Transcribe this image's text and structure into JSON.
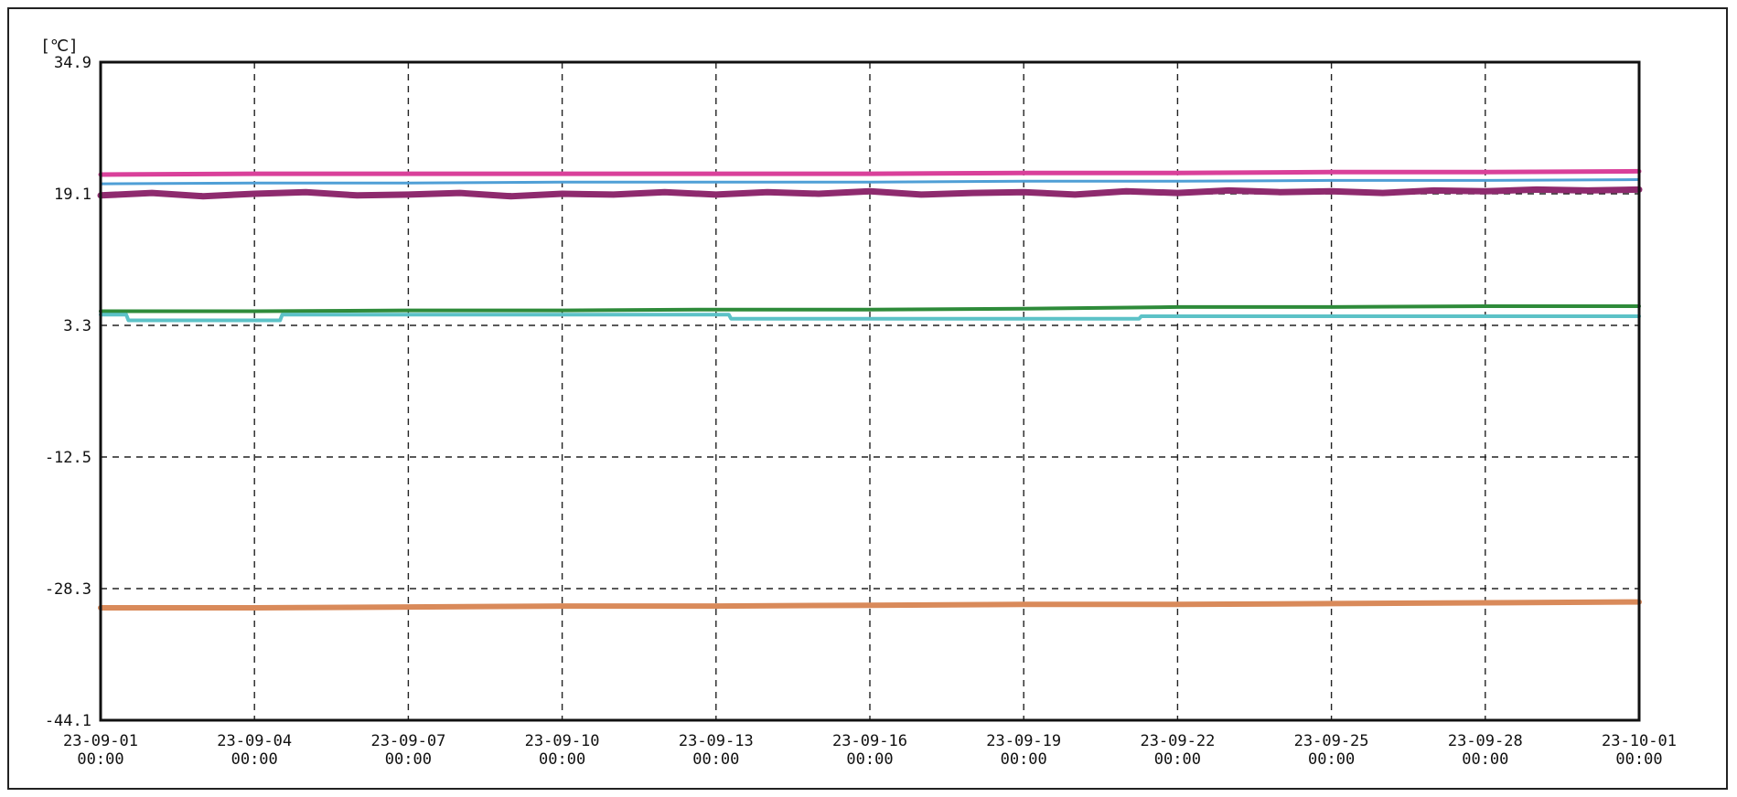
{
  "chart_data": {
    "type": "line",
    "title": "",
    "xlabel": "",
    "ylabel": "[℃]",
    "ylim": [
      -44.1,
      34.9
    ],
    "y_ticks": [
      34.9,
      19.1,
      3.3,
      -12.5,
      -28.3,
      -44.1
    ],
    "y_tick_labels": [
      "34.9",
      "19.1",
      "3.3",
      "-12.5",
      "-28.3",
      "-44.1"
    ],
    "xlim": [
      "2023-09-01 00:00",
      "2023-10-01 00:00"
    ],
    "x_ticks": [
      {
        "date": "2023-09-01",
        "line1": "23-09-01",
        "line2": "00:00"
      },
      {
        "date": "2023-09-04",
        "line1": "23-09-04",
        "line2": "00:00"
      },
      {
        "date": "2023-09-07",
        "line1": "23-09-07",
        "line2": "00:00"
      },
      {
        "date": "2023-09-10",
        "line1": "23-09-10",
        "line2": "00:00"
      },
      {
        "date": "2023-09-13",
        "line1": "23-09-13",
        "line2": "00:00"
      },
      {
        "date": "2023-09-16",
        "line1": "23-09-16",
        "line2": "00:00"
      },
      {
        "date": "2023-09-19",
        "line1": "23-09-19",
        "line2": "00:00"
      },
      {
        "date": "2023-09-22",
        "line1": "23-09-22",
        "line2": "00:00"
      },
      {
        "date": "2023-09-25",
        "line1": "23-09-25",
        "line2": "00:00"
      },
      {
        "date": "2023-09-28",
        "line1": "23-09-28",
        "line2": "00:00"
      },
      {
        "date": "2023-10-01",
        "line1": "23-10-01",
        "line2": "00:00"
      }
    ],
    "grid": true,
    "grid_style": "dashed",
    "legend": "none",
    "series": [
      {
        "color": "#d9409a",
        "points": [
          [
            "2023-09-01",
            21.4
          ],
          [
            "2023-09-04",
            21.5
          ],
          [
            "2023-09-07",
            21.5
          ],
          [
            "2023-09-10",
            21.5
          ],
          [
            "2023-09-13",
            21.5
          ],
          [
            "2023-09-16",
            21.5
          ],
          [
            "2023-09-19",
            21.6
          ],
          [
            "2023-09-22",
            21.6
          ],
          [
            "2023-09-25",
            21.7
          ],
          [
            "2023-09-28",
            21.7
          ],
          [
            "2023-10-01",
            21.8
          ]
        ]
      },
      {
        "color": "#4f9fd6",
        "points": [
          [
            "2023-09-01",
            20.3
          ],
          [
            "2023-09-04",
            20.4
          ],
          [
            "2023-09-07",
            20.4
          ],
          [
            "2023-09-10",
            20.5
          ],
          [
            "2023-09-13",
            20.5
          ],
          [
            "2023-09-16",
            20.5
          ],
          [
            "2023-09-19",
            20.6
          ],
          [
            "2023-09-22",
            20.6
          ],
          [
            "2023-09-25",
            20.7
          ],
          [
            "2023-09-28",
            20.7
          ],
          [
            "2023-10-01",
            20.8
          ]
        ]
      },
      {
        "color": "#8e2a6e",
        "points": [
          [
            "2023-09-01",
            18.9
          ],
          [
            "2023-09-02",
            19.2
          ],
          [
            "2023-09-03",
            18.8
          ],
          [
            "2023-09-04",
            19.1
          ],
          [
            "2023-09-05",
            19.3
          ],
          [
            "2023-09-06",
            18.9
          ],
          [
            "2023-09-07",
            19.0
          ],
          [
            "2023-09-08",
            19.2
          ],
          [
            "2023-09-09",
            18.8
          ],
          [
            "2023-09-10",
            19.1
          ],
          [
            "2023-09-11",
            19.0
          ],
          [
            "2023-09-12",
            19.3
          ],
          [
            "2023-09-13",
            19.0
          ],
          [
            "2023-09-14",
            19.3
          ],
          [
            "2023-09-15",
            19.1
          ],
          [
            "2023-09-16",
            19.4
          ],
          [
            "2023-09-17",
            19.0
          ],
          [
            "2023-09-18",
            19.2
          ],
          [
            "2023-09-19",
            19.3
          ],
          [
            "2023-09-20",
            19.0
          ],
          [
            "2023-09-21",
            19.4
          ],
          [
            "2023-09-22",
            19.2
          ],
          [
            "2023-09-23",
            19.5
          ],
          [
            "2023-09-24",
            19.3
          ],
          [
            "2023-09-25",
            19.4
          ],
          [
            "2023-09-26",
            19.2
          ],
          [
            "2023-09-27",
            19.5
          ],
          [
            "2023-09-28",
            19.4
          ],
          [
            "2023-09-29",
            19.6
          ],
          [
            "2023-09-30",
            19.5
          ],
          [
            "2023-10-01",
            19.6
          ]
        ]
      },
      {
        "color": "#2e8b3a",
        "points": [
          [
            "2023-09-01",
            5.0
          ],
          [
            "2023-09-04",
            5.0
          ],
          [
            "2023-09-07",
            5.1
          ],
          [
            "2023-09-10",
            5.1
          ],
          [
            "2023-09-13",
            5.2
          ],
          [
            "2023-09-16",
            5.2
          ],
          [
            "2023-09-19",
            5.3
          ],
          [
            "2023-09-22",
            5.5
          ],
          [
            "2023-09-25",
            5.5
          ],
          [
            "2023-09-28",
            5.6
          ],
          [
            "2023-10-01",
            5.6
          ]
        ]
      },
      {
        "color": "#5cc2c7",
        "points": [
          [
            "2023-09-01",
            4.6
          ],
          [
            "2023-09-01 12:00",
            4.6
          ],
          [
            "2023-09-01 13:00",
            3.9
          ],
          [
            "2023-09-04 12:00",
            3.9
          ],
          [
            "2023-09-04 13:00",
            4.6
          ],
          [
            "2023-09-13 06:00",
            4.6
          ],
          [
            "2023-09-13 07:00",
            4.1
          ],
          [
            "2023-09-21 06:00",
            4.1
          ],
          [
            "2023-09-21 07:00",
            4.4
          ],
          [
            "2023-10-01",
            4.4
          ]
        ]
      },
      {
        "color": "#d98a5a",
        "points": [
          [
            "2023-09-01",
            -30.6
          ],
          [
            "2023-09-04",
            -30.6
          ],
          [
            "2023-09-07",
            -30.5
          ],
          [
            "2023-09-10",
            -30.4
          ],
          [
            "2023-09-13",
            -30.4
          ],
          [
            "2023-09-16",
            -30.3
          ],
          [
            "2023-09-19",
            -30.2
          ],
          [
            "2023-09-22",
            -30.2
          ],
          [
            "2023-09-25",
            -30.1
          ],
          [
            "2023-09-28",
            -30.0
          ],
          [
            "2023-10-01",
            -29.9
          ]
        ]
      }
    ]
  }
}
